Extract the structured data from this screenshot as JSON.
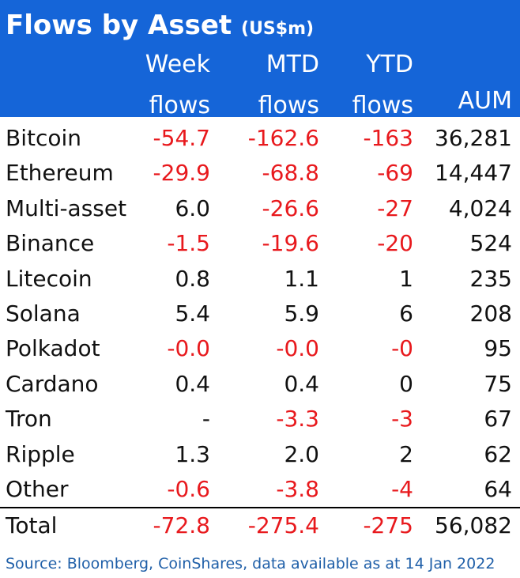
{
  "chart_data": {
    "type": "table",
    "title": "Flows by Asset",
    "unit": "(US$m)",
    "columns": [
      {
        "line1": "Week",
        "line2": "flows"
      },
      {
        "line1": "MTD",
        "line2": "flows"
      },
      {
        "line1": "YTD",
        "line2": "flows"
      },
      {
        "line1": "",
        "line2": "AUM"
      }
    ],
    "rows": [
      {
        "name": "Bitcoin",
        "week": "-54.7",
        "mtd": "-162.6",
        "ytd": "-163",
        "aum": "36,281"
      },
      {
        "name": "Ethereum",
        "week": "-29.9",
        "mtd": "-68.8",
        "ytd": "-69",
        "aum": "14,447"
      },
      {
        "name": "Multi-asset",
        "week": "6.0",
        "mtd": "-26.6",
        "ytd": "-27",
        "aum": "4,024"
      },
      {
        "name": "Binance",
        "week": "-1.5",
        "mtd": "-19.6",
        "ytd": "-20",
        "aum": "524"
      },
      {
        "name": "Litecoin",
        "week": "0.8",
        "mtd": "1.1",
        "ytd": "1",
        "aum": "235"
      },
      {
        "name": "Solana",
        "week": "5.4",
        "mtd": "5.9",
        "ytd": "6",
        "aum": "208"
      },
      {
        "name": "Polkadot",
        "week": "-0.0",
        "mtd": "-0.0",
        "ytd": "-0",
        "aum": "95"
      },
      {
        "name": "Cardano",
        "week": "0.4",
        "mtd": "0.4",
        "ytd": "0",
        "aum": "75"
      },
      {
        "name": "Tron",
        "week": "-",
        "mtd": "-3.3",
        "ytd": "-3",
        "aum": "67"
      },
      {
        "name": "Ripple",
        "week": "1.3",
        "mtd": "2.0",
        "ytd": "2",
        "aum": "62"
      },
      {
        "name": "Other",
        "week": "-0.6",
        "mtd": "-3.8",
        "ytd": "-4",
        "aum": "64"
      }
    ],
    "total": {
      "name": "Total",
      "week": "-72.8",
      "mtd": "-275.4",
      "ytd": "-275",
      "aum": "56,082"
    },
    "source": "Source: Bloomberg, CoinShares, data available as at 14 Jan 2022",
    "colors": {
      "header_bg": "#1565d8",
      "negative": "#e8191d",
      "source_text": "#1f5fa8"
    }
  }
}
